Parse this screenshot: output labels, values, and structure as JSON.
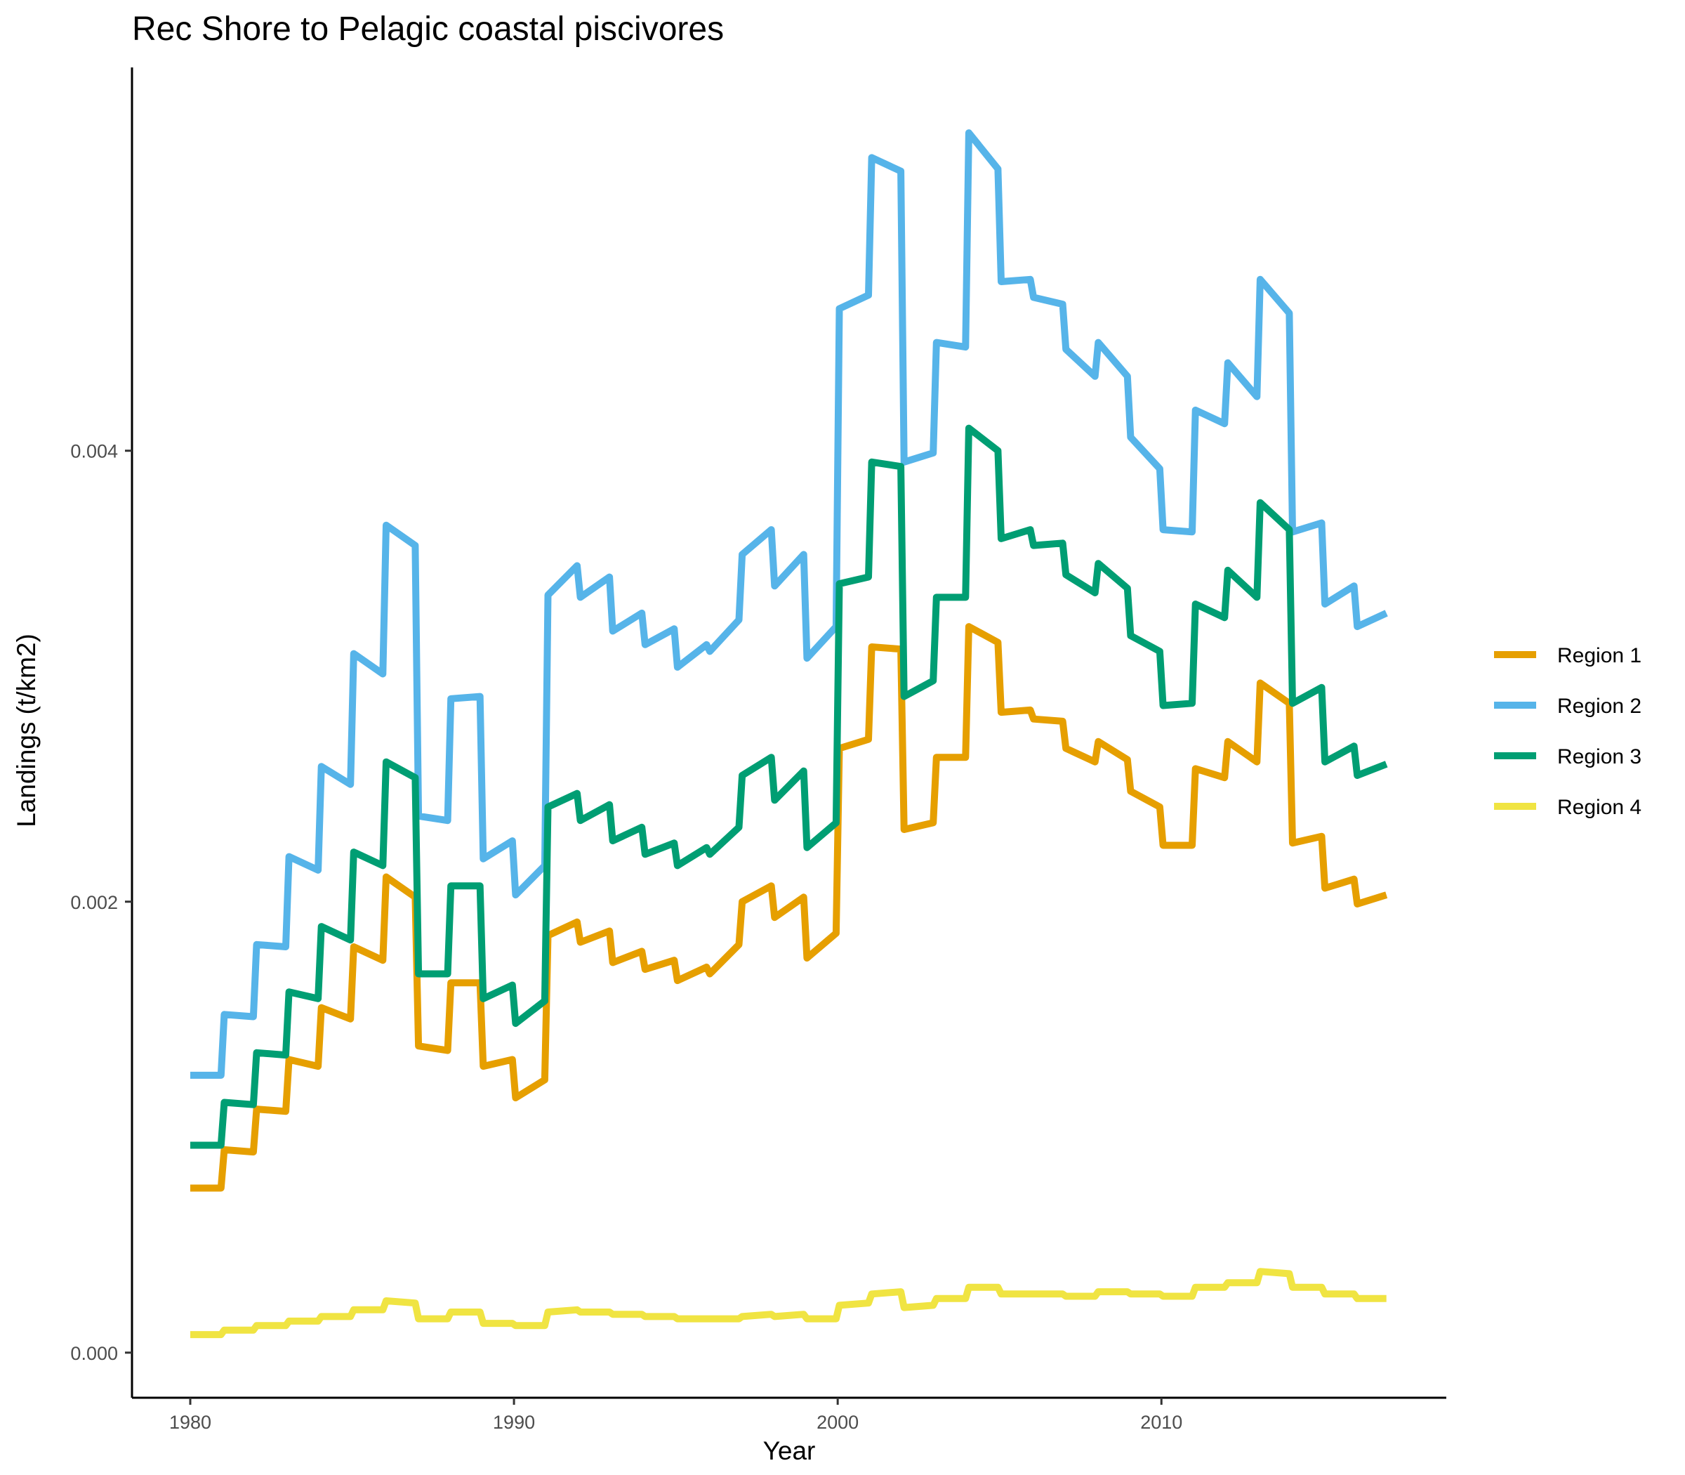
{
  "chart_data": {
    "type": "line",
    "title": "Rec Shore to Pelagic coastal piscivores",
    "xlabel": "Year",
    "ylabel": "Landings (t/km2)",
    "xlim": [
      1978.2,
      2018.8
    ],
    "ylim": [
      -0.0002,
      0.0057
    ],
    "x_ticks": [
      1980,
      1990,
      2000,
      2010
    ],
    "x_tick_labels": [
      "1980",
      "1990",
      "2000",
      "2010"
    ],
    "y_ticks": [
      0,
      0.002,
      0.004
    ],
    "y_tick_labels": [
      "0.000",
      "0.002",
      "0.004"
    ],
    "grid": false,
    "legend_position": "right",
    "x": [
      1980,
      1980.05,
      1980.95,
      1981.05,
      1981.95,
      1982.05,
      1982.95,
      1983.05,
      1983.95,
      1984.05,
      1984.95,
      1985.05,
      1985.95,
      1986.05,
      1986.95,
      1987.05,
      1987.95,
      1988.05,
      1988.95,
      1989.05,
      1989.95,
      1990.05,
      1990.95,
      1991.05,
      1991.95,
      1992.05,
      1992.95,
      1993.05,
      1993.95,
      1994.05,
      1994.95,
      1995.05,
      1995.95,
      1996.05,
      1996.95,
      1997.05,
      1997.95,
      1998.05,
      1998.95,
      1999.05,
      1999.95,
      2000.05,
      2000.95,
      2001.05,
      2001.95,
      2002.05,
      2002.95,
      2003.05,
      2003.95,
      2004.05,
      2004.95,
      2005.05,
      2005.95,
      2006.05,
      2006.95,
      2007.05,
      2007.95,
      2008.05,
      2008.95,
      2009.05,
      2009.95,
      2010.05,
      2010.95,
      2011.05,
      2011.95,
      2012.05,
      2012.95,
      2013.05,
      2013.95,
      2014.05,
      2014.95,
      2015.05,
      2015.95,
      2016.05,
      2016.95
    ],
    "series": [
      {
        "name": "Region 1",
        "color": "#E69F00",
        "values": [
          0.00073,
          0.00073,
          0.00073,
          0.0009,
          0.00089,
          0.00108,
          0.00107,
          0.0013,
          0.00127,
          0.00153,
          0.00148,
          0.0018,
          0.00174,
          0.00211,
          0.00202,
          0.00136,
          0.00134,
          0.00164,
          0.00164,
          0.00127,
          0.0013,
          0.00113,
          0.00121,
          0.00185,
          0.00191,
          0.00182,
          0.00187,
          0.00173,
          0.00178,
          0.0017,
          0.00174,
          0.00165,
          0.00171,
          0.00168,
          0.00181,
          0.002,
          0.00207,
          0.00193,
          0.00202,
          0.00175,
          0.00186,
          0.00268,
          0.00272,
          0.00313,
          0.00312,
          0.00232,
          0.00235,
          0.00264,
          0.00264,
          0.00322,
          0.00315,
          0.00284,
          0.00285,
          0.00281,
          0.0028,
          0.00268,
          0.00262,
          0.00271,
          0.00263,
          0.00249,
          0.00242,
          0.00225,
          0.00225,
          0.00259,
          0.00255,
          0.00271,
          0.00262,
          0.00297,
          0.00288,
          0.00226,
          0.00229,
          0.00206,
          0.0021,
          0.00199,
          0.00203
        ]
      },
      {
        "name": "Region 2",
        "color": "#56B4E9",
        "values": [
          0.00123,
          0.00123,
          0.00123,
          0.0015,
          0.00149,
          0.00181,
          0.0018,
          0.0022,
          0.00214,
          0.0026,
          0.00252,
          0.0031,
          0.00301,
          0.00367,
          0.00358,
          0.00238,
          0.00236,
          0.0029,
          0.00291,
          0.00219,
          0.00227,
          0.00203,
          0.00216,
          0.00336,
          0.00349,
          0.00335,
          0.00344,
          0.0032,
          0.00328,
          0.00314,
          0.00321,
          0.00304,
          0.00314,
          0.00311,
          0.00325,
          0.00354,
          0.00365,
          0.0034,
          0.00354,
          0.00308,
          0.00322,
          0.00463,
          0.00469,
          0.0053,
          0.00524,
          0.00395,
          0.00399,
          0.00448,
          0.00446,
          0.00541,
          0.00525,
          0.00475,
          0.00476,
          0.00468,
          0.00465,
          0.00445,
          0.00433,
          0.00448,
          0.00433,
          0.00406,
          0.00392,
          0.00365,
          0.00364,
          0.00418,
          0.00412,
          0.00439,
          0.00424,
          0.00476,
          0.00461,
          0.00364,
          0.00368,
          0.00332,
          0.0034,
          0.00322,
          0.00328
        ]
      },
      {
        "name": "Region 3",
        "color": "#009E73",
        "values": [
          0.00092,
          0.00092,
          0.00092,
          0.00111,
          0.0011,
          0.00133,
          0.00132,
          0.0016,
          0.00157,
          0.00189,
          0.00183,
          0.00222,
          0.00216,
          0.00262,
          0.00255,
          0.00168,
          0.00168,
          0.00207,
          0.00207,
          0.00157,
          0.00163,
          0.00146,
          0.00156,
          0.00242,
          0.00248,
          0.00236,
          0.00243,
          0.00227,
          0.00233,
          0.00221,
          0.00226,
          0.00216,
          0.00224,
          0.00221,
          0.00233,
          0.00256,
          0.00264,
          0.00245,
          0.00258,
          0.00224,
          0.00235,
          0.00341,
          0.00344,
          0.00395,
          0.00393,
          0.00291,
          0.00298,
          0.00335,
          0.00335,
          0.0041,
          0.004,
          0.00361,
          0.00365,
          0.00358,
          0.00359,
          0.00345,
          0.00337,
          0.0035,
          0.00339,
          0.00318,
          0.00311,
          0.00287,
          0.00288,
          0.00332,
          0.00326,
          0.00347,
          0.00335,
          0.00377,
          0.00365,
          0.00288,
          0.00295,
          0.00262,
          0.00269,
          0.00256,
          0.00261
        ]
      },
      {
        "name": "Region 4",
        "color": "#F0E442",
        "values": [
          8e-05,
          8e-05,
          8e-05,
          0.0001,
          0.0001,
          0.00012,
          0.00012,
          0.00014,
          0.00014,
          0.00016,
          0.00016,
          0.00019,
          0.00019,
          0.00023,
          0.00022,
          0.00015,
          0.00015,
          0.00018,
          0.00018,
          0.00013,
          0.00013,
          0.00012,
          0.00012,
          0.00018,
          0.00019,
          0.00018,
          0.00018,
          0.00017,
          0.00017,
          0.00016,
          0.00016,
          0.00015,
          0.00015,
          0.00015,
          0.00015,
          0.00016,
          0.00017,
          0.00016,
          0.00017,
          0.00015,
          0.00015,
          0.00021,
          0.00022,
          0.00026,
          0.00027,
          0.0002,
          0.00021,
          0.00024,
          0.00024,
          0.00029,
          0.00029,
          0.00026,
          0.00026,
          0.00026,
          0.00026,
          0.00025,
          0.00025,
          0.00027,
          0.00027,
          0.00026,
          0.00026,
          0.00025,
          0.00025,
          0.00029,
          0.00029,
          0.00031,
          0.00031,
          0.00036,
          0.00035,
          0.00029,
          0.00029,
          0.00026,
          0.00026,
          0.00024,
          0.00024
        ]
      }
    ]
  }
}
